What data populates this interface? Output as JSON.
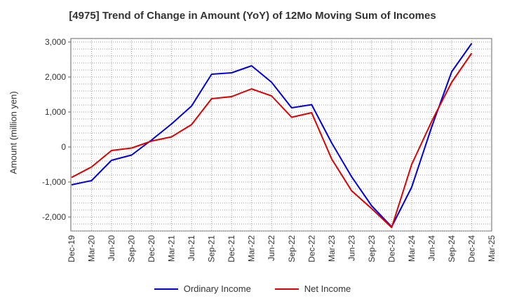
{
  "chart_data": {
    "type": "line",
    "title": "[4975]  Trend of Change in Amount (YoY) of 12Mo Moving Sum of Incomes",
    "xlabel": "",
    "ylabel": "Amount (million yen)",
    "ylim": [
      -2400,
      3100
    ],
    "yticks": [
      3000,
      2000,
      1000,
      0,
      -1000,
      -2000
    ],
    "ytick_labels": [
      "3,000",
      "2,000",
      "1,000",
      "0",
      "-1,000",
      "-2,000"
    ],
    "categories": [
      "Dec-19",
      "Mar-20",
      "Jun-20",
      "Sep-20",
      "Dec-20",
      "Mar-21",
      "Jun-21",
      "Sep-21",
      "Dec-21",
      "Mar-22",
      "Jun-22",
      "Sep-22",
      "Dec-22",
      "Mar-23",
      "Jun-23",
      "Sep-23",
      "Dec-23",
      "Mar-24",
      "Jun-24",
      "Sep-24",
      "Dec-24",
      "Mar-25"
    ],
    "grid": true,
    "legend_position": "bottom",
    "series": [
      {
        "name": "Ordinary Income",
        "color": "#0000dd",
        "values": [
          -1080,
          -960,
          -380,
          -230,
          200,
          660,
          1170,
          2080,
          2120,
          2320,
          1850,
          1120,
          1210,
          120,
          -850,
          -1680,
          -2280,
          -1150,
          570,
          2150,
          2960,
          null
        ]
      },
      {
        "name": "Net Income",
        "color": "#dd0000",
        "values": [
          -870,
          -570,
          -100,
          -30,
          170,
          290,
          640,
          1380,
          1440,
          1660,
          1460,
          850,
          980,
          -340,
          -1250,
          -1760,
          -2300,
          -500,
          730,
          1850,
          2680,
          null
        ]
      }
    ]
  }
}
